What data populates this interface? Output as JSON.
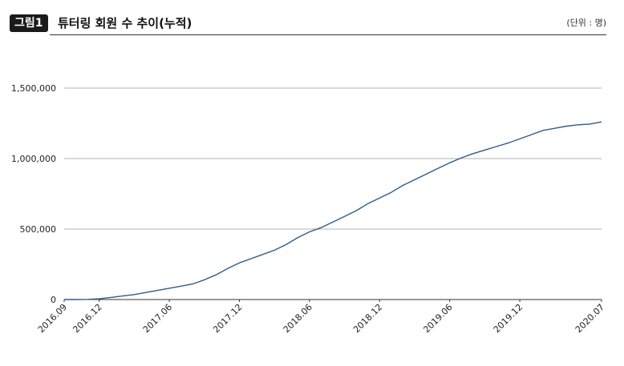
{
  "header": {
    "figure_label": "그림1",
    "title": "튜터링 회원 수 추이(누적)",
    "unit": "(단위 : 명)"
  },
  "colors": {
    "line": "#2f5d87",
    "grid": "#9a9a9a",
    "axis": "#333333",
    "text": "#222222"
  },
  "chart_data": {
    "type": "line",
    "title": "튜터링 회원 수 추이(누적)",
    "unit": "(단위 : 명)",
    "xlabel": "",
    "ylabel": "",
    "ylim": [
      0,
      1500000
    ],
    "y_ticks": [
      0,
      500000,
      1000000,
      1500000
    ],
    "y_tick_labels": [
      "0",
      "500,000",
      "1,000,000",
      "1,500,000"
    ],
    "x_ticks": [
      {
        "label": "2016.09",
        "month": "2016-09"
      },
      {
        "label": "2016.12",
        "month": "2016-12"
      },
      {
        "label": "2017.06",
        "month": "2017-06"
      },
      {
        "label": "2017.12",
        "month": "2017-12"
      },
      {
        "label": "2018.06",
        "month": "2018-06"
      },
      {
        "label": "2018.12",
        "month": "2018-12"
      },
      {
        "label": "2019.06",
        "month": "2019-06"
      },
      {
        "label": "2019.12",
        "month": "2019-12"
      },
      {
        "label": "2020.07",
        "month": "2020-07"
      }
    ],
    "grid": "horizontal",
    "series": [
      {
        "x": [
          "2016-09",
          "2016-10",
          "2016-11",
          "2016-12",
          "2017-01",
          "2017-02",
          "2017-03",
          "2017-04",
          "2017-05",
          "2017-06",
          "2017-07",
          "2017-08",
          "2017-09",
          "2017-10",
          "2017-11",
          "2017-12",
          "2018-01",
          "2018-02",
          "2018-03",
          "2018-04",
          "2018-05",
          "2018-06",
          "2018-07",
          "2018-08",
          "2018-09",
          "2018-10",
          "2018-11",
          "2018-12",
          "2019-01",
          "2019-02",
          "2019-03",
          "2019-04",
          "2019-05",
          "2019-06",
          "2019-07",
          "2019-08",
          "2019-09",
          "2019-10",
          "2019-11",
          "2019-12",
          "2020-01",
          "2020-02",
          "2020-03",
          "2020-04",
          "2020-05",
          "2020-06",
          "2020-07"
        ],
        "y": [
          0,
          0,
          1000,
          5000,
          15000,
          25000,
          35000,
          50000,
          65000,
          80000,
          95000,
          110000,
          140000,
          175000,
          220000,
          260000,
          290000,
          320000,
          350000,
          390000,
          440000,
          480000,
          510000,
          550000,
          590000,
          630000,
          680000,
          720000,
          760000,
          810000,
          850000,
          890000,
          930000,
          970000,
          1005000,
          1035000,
          1060000,
          1085000,
          1110000,
          1140000,
          1170000,
          1200000,
          1215000,
          1230000,
          1240000,
          1245000,
          1260000
        ]
      }
    ]
  }
}
